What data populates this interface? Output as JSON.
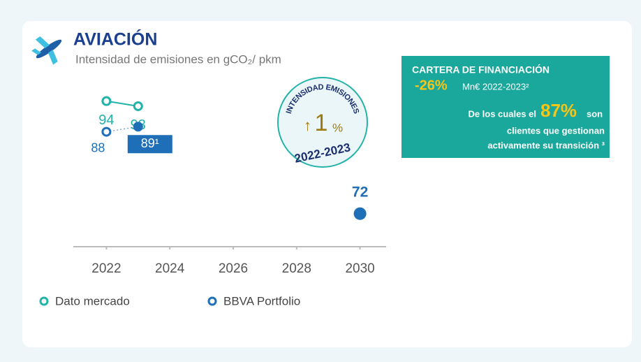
{
  "chart_data": {
    "type": "line",
    "title": "AVIACIÓN",
    "subtitle": "Intensidad de emisiones en gCO₂/ pkm",
    "x": [
      2022,
      2023,
      2030
    ],
    "xlim": [
      2021,
      2031
    ],
    "xticks": [
      2022,
      2024,
      2026,
      2028,
      2030
    ],
    "ylim": [
      68,
      96
    ],
    "series": [
      {
        "name": "Dato mercado",
        "color": "#22b3a8",
        "values": [
          94,
          93,
          null
        ],
        "value_labels": [
          "94",
          "93",
          null
        ],
        "filled": [
          false,
          false,
          false
        ],
        "label_boxed": [
          false,
          false,
          false
        ]
      },
      {
        "name": "BBVA Portfolio",
        "color": "#1f6fb8",
        "values": [
          88,
          89,
          72
        ],
        "value_labels": [
          "88",
          "89¹",
          "72"
        ],
        "filled": [
          false,
          true,
          true
        ],
        "label_boxed": [
          false,
          true,
          false
        ]
      }
    ]
  },
  "badge": {
    "arc_text": "INTENSIDAD EMISIONES",
    "arrow": "↑",
    "value": "1",
    "unit": "%",
    "period": "2022-2023"
  },
  "panel": {
    "title": "CARTERA DE FINANCIACIÓN",
    "change": "-26%",
    "change_note": "Mn€ 2022-2023²",
    "line1_pre": "De los cuales el",
    "share": "87%",
    "line1_post": "son",
    "line2": "clientes que gestionan",
    "line3": "activamente su transición ³"
  }
}
